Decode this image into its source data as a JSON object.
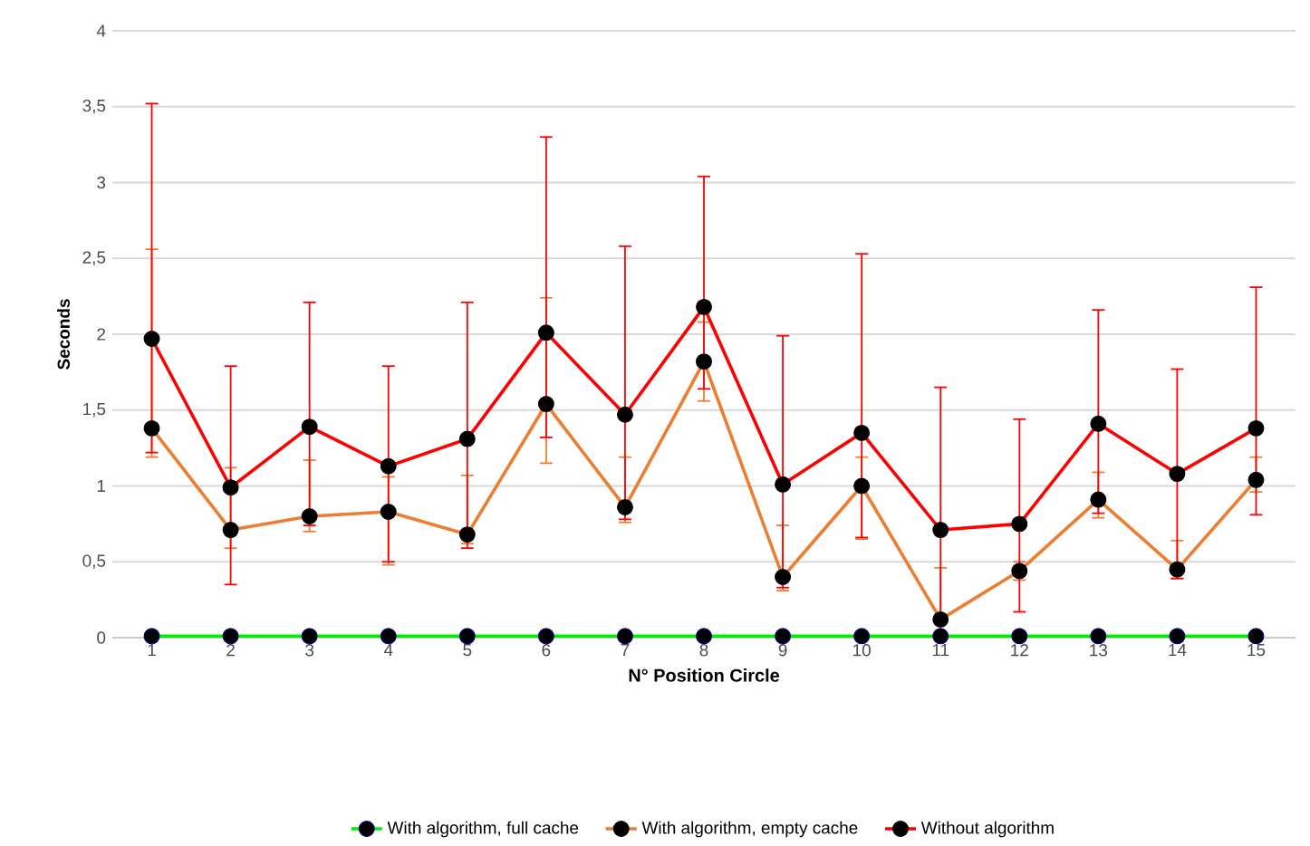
{
  "chart_data": {
    "type": "line",
    "xlabel": "N° Position Circle",
    "ylabel": "Seconds",
    "categories": [
      "1",
      "2",
      "3",
      "4",
      "5",
      "6",
      "7",
      "8",
      "9",
      "10",
      "11",
      "12",
      "13",
      "14",
      "15"
    ],
    "series": [
      {
        "name": "With algorithm, full cache",
        "color": "#00ee00",
        "values": [
          0.01,
          0.01,
          0.01,
          0.01,
          0.01,
          0.01,
          0.01,
          0.01,
          0.01,
          0.01,
          0.01,
          0.01,
          0.01,
          0.01,
          0.01
        ]
      },
      {
        "name": "With algorithm, empty cache",
        "color": "#ed7d31",
        "values": [
          1.38,
          0.71,
          0.8,
          0.83,
          0.68,
          1.54,
          0.86,
          1.82,
          0.4,
          1.0,
          0.12,
          0.44,
          0.91,
          0.45,
          1.04
        ],
        "errors": [
          [
            1.19,
            2.56
          ],
          [
            0.59,
            1.12
          ],
          [
            0.7,
            1.17
          ],
          [
            0.48,
            1.06
          ],
          [
            0.62,
            1.07
          ],
          [
            1.15,
            2.24
          ],
          [
            0.76,
            1.19
          ],
          [
            1.56,
            2.08
          ],
          [
            0.31,
            0.74
          ],
          [
            0.65,
            1.19
          ],
          [
            0,
            0.46
          ],
          [
            0.38,
            0.5
          ],
          [
            0.79,
            1.09
          ],
          [
            0.39,
            0.64
          ],
          [
            0.96,
            1.19
          ]
        ]
      },
      {
        "name": "Without algorithm",
        "color": "#ff0000",
        "values": [
          1.97,
          0.99,
          1.39,
          1.13,
          1.31,
          2.01,
          1.47,
          2.18,
          1.01,
          1.35,
          0.71,
          0.75,
          1.41,
          1.08,
          1.38
        ],
        "errors": [
          [
            1.22,
            3.52
          ],
          [
            0.35,
            1.79
          ],
          [
            0.74,
            2.21
          ],
          [
            0.5,
            1.79
          ],
          [
            0.59,
            2.21
          ],
          [
            1.32,
            3.3
          ],
          [
            0.78,
            2.58
          ],
          [
            1.64,
            3.04
          ],
          [
            0.33,
            1.99
          ],
          [
            0.66,
            2.53
          ],
          [
            0.11,
            1.65
          ],
          [
            0.17,
            1.44
          ],
          [
            0.82,
            2.16
          ],
          [
            0.39,
            1.77
          ],
          [
            0.81,
            2.31
          ]
        ]
      }
    ],
    "ylim": [
      0,
      4
    ],
    "yticks": [
      0,
      {
        "value": 0.5,
        "label": "0,5"
      },
      1,
      {
        "value": 1.5,
        "label": "1,5"
      },
      2,
      {
        "value": 2.5,
        "label": "2,5"
      },
      3,
      {
        "value": 3.5,
        "label": "3,5"
      },
      4
    ],
    "grid": "y",
    "legend": "bottom",
    "marker": "circle",
    "line_style": "solid"
  }
}
